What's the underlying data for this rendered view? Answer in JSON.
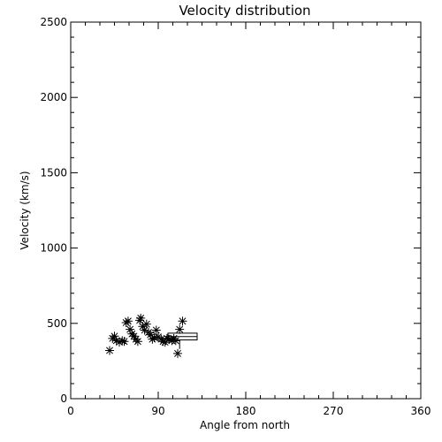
{
  "chart_data": {
    "type": "scatter",
    "title": "Velocity distribution",
    "xlabel": "Angle from north",
    "ylabel": "Velocity (km/s)",
    "xlim": [
      0,
      360
    ],
    "ylim": [
      0,
      2500
    ],
    "xticks": [
      0,
      90,
      180,
      270,
      360
    ],
    "yticks": [
      0,
      500,
      1000,
      1500,
      2000,
      2500
    ],
    "grid": false,
    "marker": "asterisk",
    "points": [
      {
        "x": 40,
        "y": 320
      },
      {
        "x": 43,
        "y": 400
      },
      {
        "x": 45,
        "y": 415
      },
      {
        "x": 47,
        "y": 385
      },
      {
        "x": 50,
        "y": 375
      },
      {
        "x": 53,
        "y": 385
      },
      {
        "x": 55,
        "y": 380
      },
      {
        "x": 57,
        "y": 505
      },
      {
        "x": 59,
        "y": 515
      },
      {
        "x": 61,
        "y": 460
      },
      {
        "x": 63,
        "y": 430
      },
      {
        "x": 65,
        "y": 415
      },
      {
        "x": 67,
        "y": 395
      },
      {
        "x": 69,
        "y": 380
      },
      {
        "x": 71,
        "y": 520
      },
      {
        "x": 72,
        "y": 535
      },
      {
        "x": 74,
        "y": 480
      },
      {
        "x": 76,
        "y": 455
      },
      {
        "x": 78,
        "y": 495
      },
      {
        "x": 80,
        "y": 440
      },
      {
        "x": 82,
        "y": 425
      },
      {
        "x": 84,
        "y": 395
      },
      {
        "x": 86,
        "y": 405
      },
      {
        "x": 88,
        "y": 455
      },
      {
        "x": 90,
        "y": 410
      },
      {
        "x": 93,
        "y": 395
      },
      {
        "x": 95,
        "y": 380
      },
      {
        "x": 97,
        "y": 375
      },
      {
        "x": 99,
        "y": 400
      },
      {
        "x": 101,
        "y": 395
      },
      {
        "x": 104,
        "y": 385
      },
      {
        "x": 106,
        "y": 400
      },
      {
        "x": 108,
        "y": 385
      },
      {
        "x": 110,
        "y": 300
      },
      {
        "x": 112,
        "y": 460
      },
      {
        "x": 115,
        "y": 515
      }
    ],
    "box": {
      "x_start": 100,
      "x_end": 130,
      "y_low": 390,
      "y_high": 435,
      "median": 412,
      "whisker_x": 112,
      "whisker_low": 330
    }
  }
}
